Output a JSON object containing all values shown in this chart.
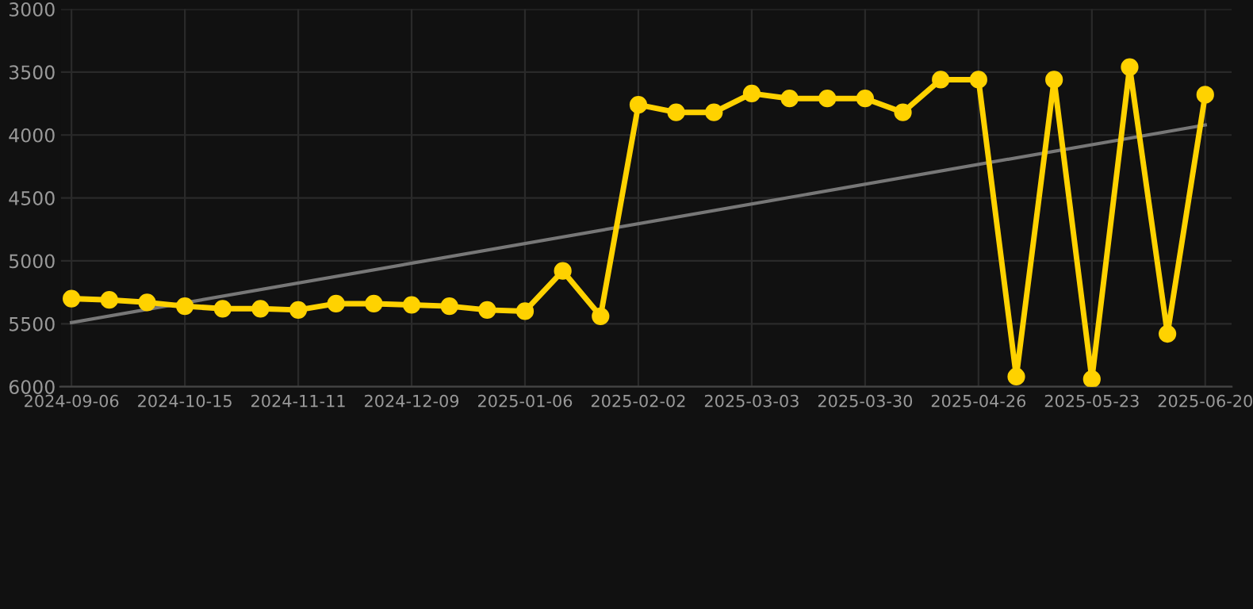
{
  "chart_data": {
    "type": "line",
    "categories": [
      "2024-09-06",
      null,
      null,
      "2024-10-15",
      null,
      null,
      "2024-11-11",
      null,
      null,
      "2024-12-09",
      null,
      null,
      "2025-01-06",
      null,
      null,
      "2025-02-02",
      null,
      null,
      "2025-03-03",
      null,
      null,
      "2025-03-30",
      null,
      null,
      "2025-04-26",
      null,
      null,
      "2025-05-23",
      null,
      null,
      "2025-06-20"
    ],
    "series": [
      {
        "color": "#ffd200",
        "marker": "circle",
        "values": [
          5300,
          5310,
          5330,
          5360,
          5380,
          5380,
          5390,
          5340,
          5340,
          5350,
          5360,
          5390,
          5400,
          5080,
          5440,
          3760,
          3820,
          3820,
          3670,
          3710,
          3710,
          3710,
          3820,
          3560,
          3560,
          5920,
          3560,
          5940,
          3460,
          5580,
          3680
        ]
      },
      {
        "type": "line",
        "color": "#777777",
        "marker": "none",
        "values": [
          5490,
          null,
          null,
          null,
          null,
          null,
          null,
          null,
          null,
          null,
          null,
          null,
          null,
          null,
          null,
          null,
          null,
          null,
          null,
          null,
          null,
          null,
          null,
          null,
          null,
          null,
          null,
          null,
          null,
          null,
          3920
        ]
      }
    ],
    "ylim": [
      6000,
      3000
    ],
    "yticks": [
      3000,
      3500,
      4000,
      4500,
      5000,
      5500,
      6000
    ],
    "grid": true,
    "line_style": "solid"
  }
}
